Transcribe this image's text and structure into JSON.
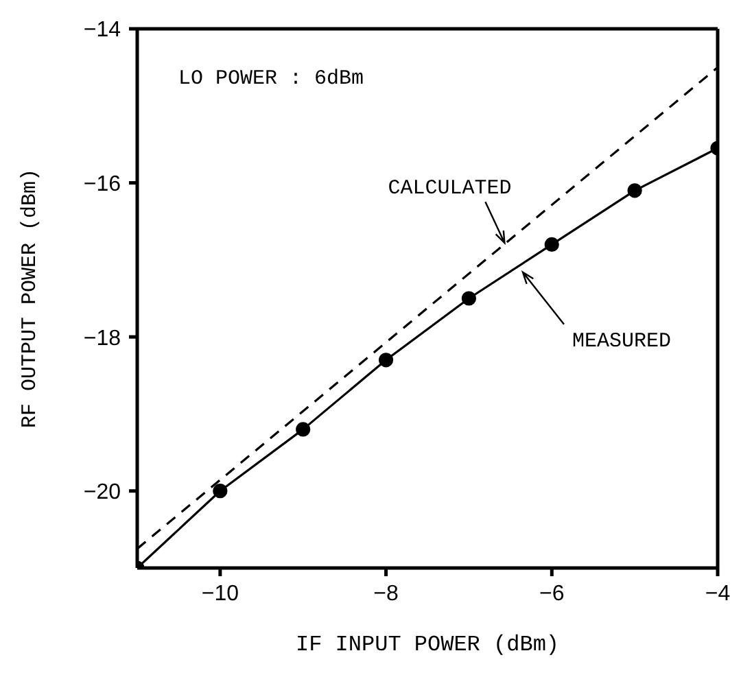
{
  "chart_data": {
    "type": "line",
    "xlabel": "IF INPUT POWER (dBm)",
    "ylabel": "RF OUTPUT POWER (dBm)",
    "xlim": [
      -11,
      -4
    ],
    "xticks": [
      -10,
      -8,
      -6,
      -4
    ],
    "ylim": [
      -21,
      -14
    ],
    "yticks": [
      -14,
      -16,
      -18,
      -20
    ],
    "grid": false,
    "series": [
      {
        "color": "#000000",
        "marker": "none",
        "line_style": "dashed",
        "x": [
          -11,
          -4
        ],
        "values": [
          -20.75,
          -14.5
        ]
      },
      {
        "color": "#000000",
        "marker": "circle",
        "line_style": "solid",
        "x": [
          -11,
          -10,
          -9,
          -8,
          -7,
          -6,
          -5,
          -4
        ],
        "values": [
          -21,
          -20,
          -19.2,
          -18.3,
          -17.5,
          -16.8,
          -16.1,
          -15.55
        ]
      }
    ],
    "annotations": [
      "LO POWER : 6dBm",
      {
        "text": "CALCULATED",
        "x": -6.57,
        "y": -16.78
      },
      {
        "text": "MEASURED",
        "x": -6.35,
        "y": -17.16
      }
    ]
  }
}
